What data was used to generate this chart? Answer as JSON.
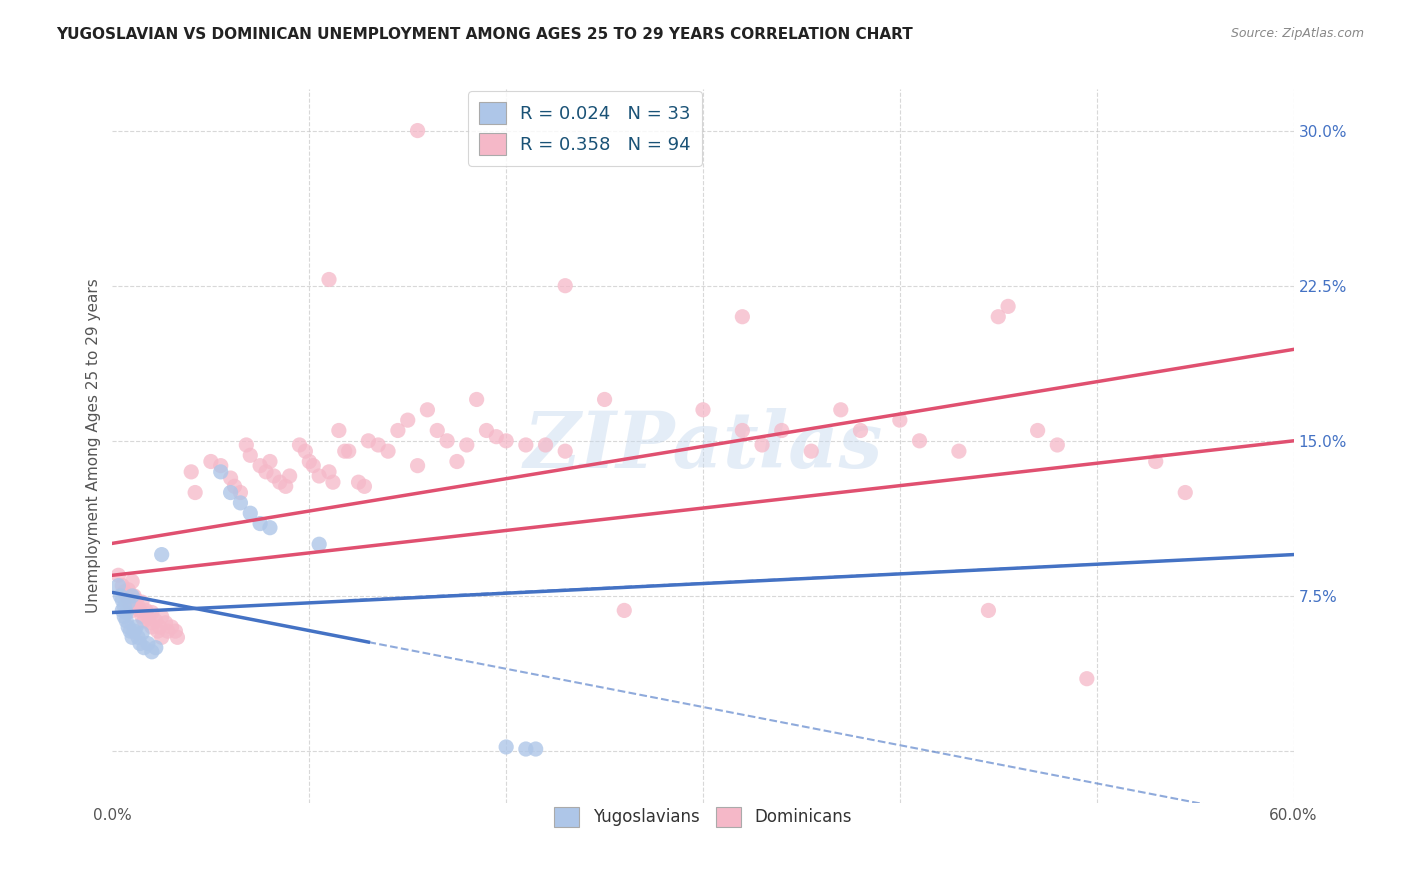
{
  "title": "YUGOSLAVIAN VS DOMINICAN UNEMPLOYMENT AMONG AGES 25 TO 29 YEARS CORRELATION CHART",
  "source": "Source: ZipAtlas.com",
  "ylabel": "Unemployment Among Ages 25 to 29 years",
  "xlim": [
    0.0,
    0.6
  ],
  "ylim": [
    -0.025,
    0.32
  ],
  "xticks": [
    0.0,
    0.1,
    0.2,
    0.3,
    0.4,
    0.5,
    0.6
  ],
  "xticklabels": [
    "0.0%",
    "",
    "",
    "",
    "",
    "",
    "60.0%"
  ],
  "yticks": [
    0.0,
    0.075,
    0.15,
    0.225,
    0.3
  ],
  "yticklabels": [
    "",
    "7.5%",
    "15.0%",
    "22.5%",
    "30.0%"
  ],
  "background_color": "#ffffff",
  "grid_color": "#c8c8c8",
  "watermark": "ZIPatlas",
  "yugoslavian_color": "#aec6e8",
  "dominican_color": "#f5b8c8",
  "yugoslavian_line_color": "#4472c4",
  "dominican_line_color": "#e05070",
  "tick_color": "#4472c4",
  "yugoslavian_scatter": [
    [
      0.003,
      0.08
    ],
    [
      0.004,
      0.075
    ],
    [
      0.005,
      0.073
    ],
    [
      0.005,
      0.068
    ],
    [
      0.006,
      0.07
    ],
    [
      0.006,
      0.065
    ],
    [
      0.007,
      0.067
    ],
    [
      0.007,
      0.063
    ],
    [
      0.008,
      0.072
    ],
    [
      0.008,
      0.06
    ],
    [
      0.009,
      0.058
    ],
    [
      0.01,
      0.075
    ],
    [
      0.01,
      0.055
    ],
    [
      0.011,
      0.058
    ],
    [
      0.012,
      0.06
    ],
    [
      0.013,
      0.055
    ],
    [
      0.014,
      0.052
    ],
    [
      0.015,
      0.057
    ],
    [
      0.016,
      0.05
    ],
    [
      0.018,
      0.052
    ],
    [
      0.02,
      0.048
    ],
    [
      0.022,
      0.05
    ],
    [
      0.025,
      0.095
    ],
    [
      0.055,
      0.135
    ],
    [
      0.06,
      0.125
    ],
    [
      0.065,
      0.12
    ],
    [
      0.07,
      0.115
    ],
    [
      0.075,
      0.11
    ],
    [
      0.08,
      0.108
    ],
    [
      0.105,
      0.1
    ],
    [
      0.2,
      0.002
    ],
    [
      0.21,
      0.001
    ],
    [
      0.215,
      0.001
    ]
  ],
  "dominican_scatter": [
    [
      0.003,
      0.085
    ],
    [
      0.005,
      0.08
    ],
    [
      0.006,
      0.077
    ],
    [
      0.007,
      0.075
    ],
    [
      0.008,
      0.078
    ],
    [
      0.008,
      0.072
    ],
    [
      0.009,
      0.07
    ],
    [
      0.01,
      0.082
    ],
    [
      0.01,
      0.068
    ],
    [
      0.011,
      0.075
    ],
    [
      0.012,
      0.073
    ],
    [
      0.013,
      0.07
    ],
    [
      0.014,
      0.068
    ],
    [
      0.015,
      0.072
    ],
    [
      0.015,
      0.065
    ],
    [
      0.016,
      0.063
    ],
    [
      0.017,
      0.068
    ],
    [
      0.018,
      0.065
    ],
    [
      0.019,
      0.062
    ],
    [
      0.02,
      0.067
    ],
    [
      0.02,
      0.06
    ],
    [
      0.022,
      0.063
    ],
    [
      0.023,
      0.058
    ],
    [
      0.024,
      0.06
    ],
    [
      0.025,
      0.065
    ],
    [
      0.025,
      0.055
    ],
    [
      0.027,
      0.062
    ],
    [
      0.028,
      0.058
    ],
    [
      0.03,
      0.06
    ],
    [
      0.032,
      0.058
    ],
    [
      0.033,
      0.055
    ],
    [
      0.04,
      0.135
    ],
    [
      0.042,
      0.125
    ],
    [
      0.05,
      0.14
    ],
    [
      0.055,
      0.138
    ],
    [
      0.06,
      0.132
    ],
    [
      0.062,
      0.128
    ],
    [
      0.065,
      0.125
    ],
    [
      0.068,
      0.148
    ],
    [
      0.07,
      0.143
    ],
    [
      0.075,
      0.138
    ],
    [
      0.078,
      0.135
    ],
    [
      0.08,
      0.14
    ],
    [
      0.082,
      0.133
    ],
    [
      0.085,
      0.13
    ],
    [
      0.088,
      0.128
    ],
    [
      0.09,
      0.133
    ],
    [
      0.095,
      0.148
    ],
    [
      0.098,
      0.145
    ],
    [
      0.1,
      0.14
    ],
    [
      0.102,
      0.138
    ],
    [
      0.105,
      0.133
    ],
    [
      0.11,
      0.135
    ],
    [
      0.112,
      0.13
    ],
    [
      0.115,
      0.155
    ],
    [
      0.118,
      0.145
    ],
    [
      0.12,
      0.145
    ],
    [
      0.125,
      0.13
    ],
    [
      0.128,
      0.128
    ],
    [
      0.13,
      0.15
    ],
    [
      0.135,
      0.148
    ],
    [
      0.14,
      0.145
    ],
    [
      0.145,
      0.155
    ],
    [
      0.15,
      0.16
    ],
    [
      0.155,
      0.138
    ],
    [
      0.16,
      0.165
    ],
    [
      0.165,
      0.155
    ],
    [
      0.17,
      0.15
    ],
    [
      0.175,
      0.14
    ],
    [
      0.18,
      0.148
    ],
    [
      0.185,
      0.17
    ],
    [
      0.19,
      0.155
    ],
    [
      0.195,
      0.152
    ],
    [
      0.2,
      0.15
    ],
    [
      0.21,
      0.148
    ],
    [
      0.22,
      0.148
    ],
    [
      0.23,
      0.145
    ],
    [
      0.25,
      0.17
    ],
    [
      0.26,
      0.068
    ],
    [
      0.3,
      0.165
    ],
    [
      0.32,
      0.155
    ],
    [
      0.33,
      0.148
    ],
    [
      0.34,
      0.155
    ],
    [
      0.355,
      0.145
    ],
    [
      0.37,
      0.165
    ],
    [
      0.38,
      0.155
    ],
    [
      0.4,
      0.16
    ],
    [
      0.41,
      0.15
    ],
    [
      0.43,
      0.145
    ],
    [
      0.445,
      0.068
    ],
    [
      0.45,
      0.21
    ],
    [
      0.455,
      0.215
    ],
    [
      0.47,
      0.155
    ],
    [
      0.48,
      0.148
    ],
    [
      0.495,
      0.035
    ],
    [
      0.53,
      0.14
    ],
    [
      0.545,
      0.125
    ],
    [
      0.11,
      0.228
    ],
    [
      0.155,
      0.3
    ],
    [
      0.23,
      0.225
    ],
    [
      0.32,
      0.21
    ]
  ]
}
